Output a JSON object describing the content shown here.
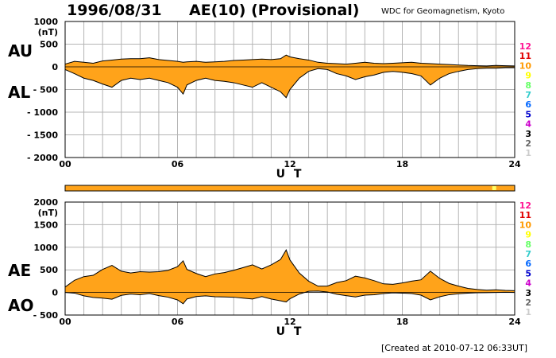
{
  "header": {
    "date": "1996/08/31",
    "title": "AE(10) (Provisional)",
    "organization": "WDC for Geomagnetism, Kyoto",
    "created": "[Created at 2010-07-12 06:33UT]"
  },
  "colors": {
    "fill": "#ffa31a",
    "grid": "#b4b4b4",
    "bar": "#ffa31a",
    "bar_highlight": "#ffff66"
  },
  "legend": {
    "numbers": [
      "12",
      "11",
      "10",
      "9",
      "8",
      "7",
      "6",
      "5",
      "4",
      "3",
      "2",
      "1"
    ],
    "colors": [
      "#ff1493",
      "#e00000",
      "#ff9900",
      "#ffff00",
      "#66ff66",
      "#33cccc",
      "#0066ff",
      "#0000cc",
      "#cc00cc",
      "#000000",
      "#666666",
      "#cccccc"
    ]
  },
  "chart_data": [
    {
      "type": "area",
      "panel": "AU/AL",
      "labels": {
        "upper": "AU",
        "lower": "AL",
        "unit": "(nT)",
        "xlabel": "U T"
      },
      "ylim": [
        -2000,
        1000
      ],
      "yticks": [
        "1000",
        "500",
        "0",
        "- 500",
        "- 1000",
        "- 1500",
        "- 2000"
      ],
      "ytick_values": [
        1000,
        500,
        0,
        -500,
        -1000,
        -1500,
        -2000
      ],
      "xlim": [
        0,
        24
      ],
      "xtick_labels": [
        "00",
        "06",
        "12",
        "18",
        "24"
      ],
      "xtick_values": [
        0,
        6,
        12,
        18,
        24
      ],
      "x": [
        0,
        0.5,
        1,
        1.5,
        2,
        2.5,
        3,
        3.5,
        4,
        4.5,
        5,
        5.5,
        6,
        6.3,
        6.5,
        7,
        7.5,
        8,
        8.5,
        9,
        9.5,
        10,
        10.5,
        11,
        11.5,
        11.8,
        12,
        12.5,
        13,
        13.5,
        14,
        14.5,
        15,
        15.5,
        16,
        16.5,
        17,
        17.5,
        18,
        18.5,
        19,
        19.5,
        20,
        20.5,
        21,
        21.5,
        22,
        22.5,
        23,
        23.5,
        24
      ],
      "series": [
        {
          "name": "AU",
          "values": [
            60,
            120,
            100,
            80,
            130,
            150,
            170,
            180,
            180,
            200,
            160,
            140,
            120,
            100,
            110,
            120,
            100,
            110,
            120,
            140,
            150,
            160,
            170,
            160,
            180,
            260,
            220,
            180,
            150,
            100,
            80,
            70,
            60,
            80,
            100,
            80,
            70,
            80,
            90,
            100,
            80,
            70,
            60,
            50,
            40,
            30,
            25,
            20,
            30,
            25,
            20
          ]
        },
        {
          "name": "AL",
          "values": [
            -60,
            -150,
            -250,
            -300,
            -380,
            -450,
            -300,
            -250,
            -280,
            -250,
            -300,
            -350,
            -450,
            -600,
            -400,
            -300,
            -250,
            -300,
            -320,
            -350,
            -400,
            -450,
            -350,
            -450,
            -550,
            -680,
            -500,
            -250,
            -100,
            -40,
            -60,
            -150,
            -200,
            -280,
            -220,
            -180,
            -120,
            -100,
            -120,
            -150,
            -200,
            -400,
            -250,
            -150,
            -100,
            -60,
            -40,
            -30,
            -30,
            -20,
            -20
          ]
        }
      ]
    },
    {
      "type": "area",
      "panel": "AE/AO",
      "labels": {
        "upper": "AE",
        "lower": "AO",
        "unit": "(nT)",
        "xlabel": "U T"
      },
      "ylim": [
        -500,
        2000
      ],
      "yticks": [
        "2000",
        "1500",
        "1000",
        "500",
        "0",
        "- 500"
      ],
      "ytick_values": [
        2000,
        1500,
        1000,
        500,
        0,
        -500
      ],
      "xlim": [
        0,
        24
      ],
      "xtick_labels": [
        "00",
        "06",
        "12",
        "18",
        "24"
      ],
      "xtick_values": [
        0,
        6,
        12,
        18,
        24
      ],
      "x": [
        0,
        0.5,
        1,
        1.5,
        2,
        2.5,
        3,
        3.5,
        4,
        4.5,
        5,
        5.5,
        6,
        6.3,
        6.5,
        7,
        7.5,
        8,
        8.5,
        9,
        9.5,
        10,
        10.5,
        11,
        11.5,
        11.8,
        12,
        12.5,
        13,
        13.5,
        14,
        14.5,
        15,
        15.5,
        16,
        16.5,
        17,
        17.5,
        18,
        18.5,
        19,
        19.5,
        20,
        20.5,
        21,
        21.5,
        22,
        22.5,
        23,
        23.5,
        24
      ],
      "series": [
        {
          "name": "AE",
          "values": [
            120,
            270,
            350,
            380,
            510,
            600,
            470,
            430,
            460,
            450,
            460,
            490,
            570,
            700,
            510,
            420,
            350,
            410,
            440,
            490,
            550,
            610,
            520,
            610,
            730,
            940,
            720,
            430,
            250,
            140,
            140,
            220,
            260,
            360,
            320,
            260,
            190,
            180,
            210,
            250,
            280,
            470,
            310,
            200,
            140,
            90,
            65,
            50,
            60,
            45,
            40
          ]
        },
        {
          "name": "AO",
          "values": [
            0,
            -15,
            -75,
            -110,
            -125,
            -150,
            -65,
            -35,
            -50,
            -25,
            -70,
            -105,
            -165,
            -250,
            -145,
            -90,
            -75,
            -95,
            -100,
            -105,
            -125,
            -145,
            -90,
            -145,
            -185,
            -210,
            -140,
            -35,
            25,
            30,
            10,
            -40,
            -70,
            -100,
            -60,
            -50,
            -25,
            -10,
            -15,
            -25,
            -60,
            -165,
            -95,
            -50,
            -30,
            -15,
            -8,
            -5,
            0,
            3,
            0
          ]
        }
      ]
    }
  ],
  "status_bar": {
    "highlight_hour": 22.8
  }
}
